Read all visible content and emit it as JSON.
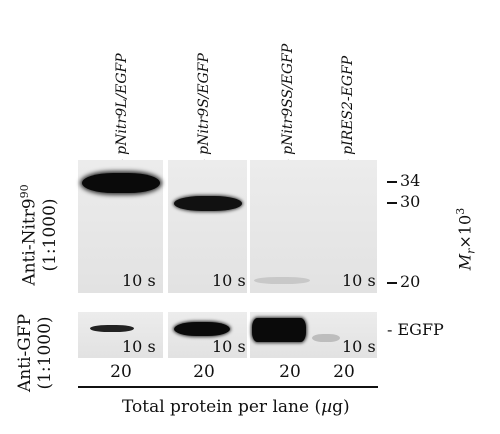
{
  "lanes": [
    {
      "label": "- pNitr9L/EGFP",
      "amount": "20"
    },
    {
      "label": "- pNitr9S/EGFP",
      "amount": "20"
    },
    {
      "label": "- pNitr9SS/EGFP",
      "amount": "20"
    },
    {
      "label": "- pIRES2-EGFP",
      "amount": "20"
    }
  ],
  "top_blot": {
    "antibody": "Anti-Nitr9",
    "antibody_superscript": "90",
    "dilution": "(1:1000)",
    "exposures": [
      "10 s",
      "10 s",
      "10 s"
    ]
  },
  "bottom_blot": {
    "antibody": "Anti-GFP",
    "dilution": "(1:1000)",
    "exposures": [
      "10 s",
      "10 s",
      "10 s"
    ]
  },
  "markers": [
    "34",
    "30",
    "20"
  ],
  "egfp_marker": "- EGFP",
  "mw_axis_label": "M",
  "mw_axis_sub": "r",
  "mw_axis_suffix": "×10",
  "mw_axis_sup": "3",
  "footer": "Total protein per lane (µg)"
}
